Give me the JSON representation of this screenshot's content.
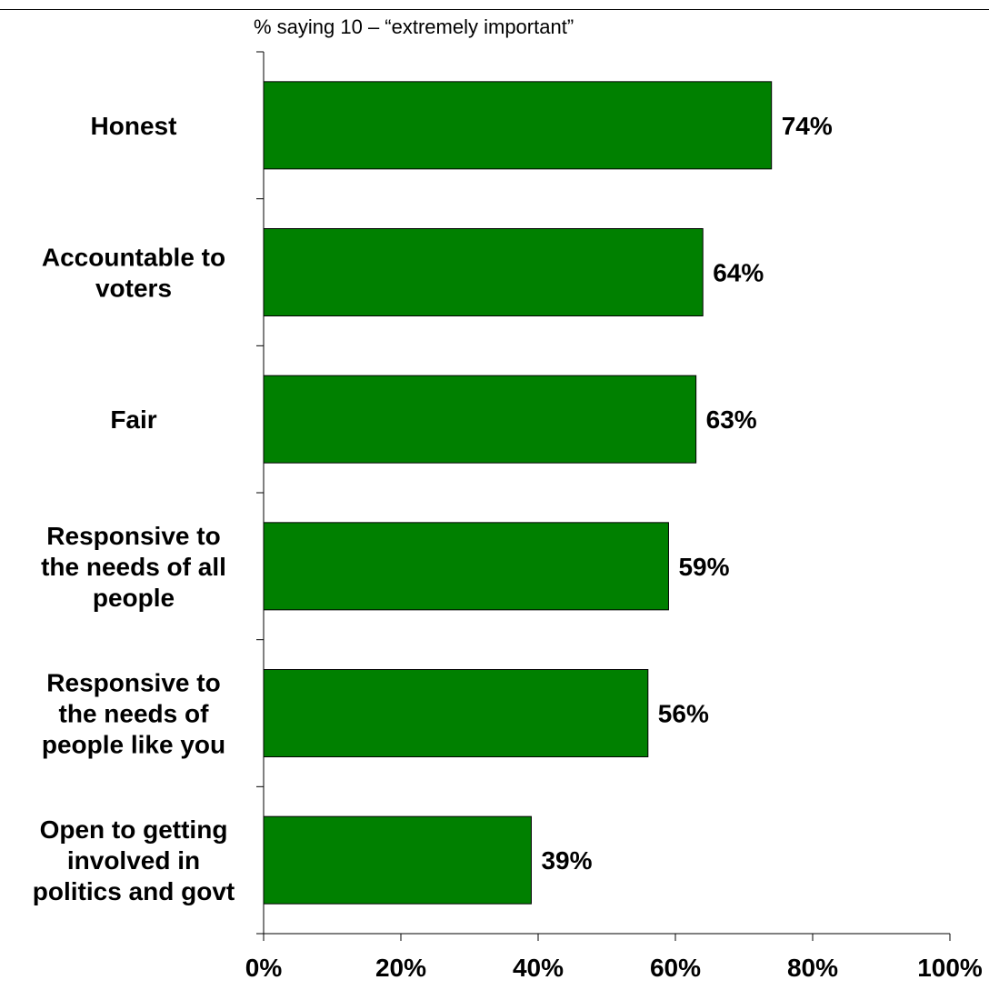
{
  "chart_data": {
    "type": "bar",
    "orientation": "horizontal",
    "title": "% saying 10 – “extremely important”",
    "categories": [
      [
        "Honest"
      ],
      [
        "Accountable to",
        "voters"
      ],
      [
        "Fair"
      ],
      [
        "Responsive to",
        "the needs of all",
        "people"
      ],
      [
        "Responsive to",
        "the needs of",
        "people like you"
      ],
      [
        "Open to getting",
        "involved in",
        "politics and govt"
      ]
    ],
    "values": [
      74,
      64,
      63,
      59,
      56,
      39
    ],
    "value_labels": [
      "74%",
      "64%",
      "63%",
      "59%",
      "56%",
      "39%"
    ],
    "xlim": [
      0,
      100
    ],
    "x_ticks": [
      0,
      20,
      40,
      60,
      80,
      100
    ],
    "x_tick_labels": [
      "0%",
      "20%",
      "40%",
      "60%",
      "80%",
      "100%"
    ],
    "xlabel": "",
    "ylabel": "",
    "grid": false,
    "legend": "none",
    "bar_color": "#008000"
  }
}
